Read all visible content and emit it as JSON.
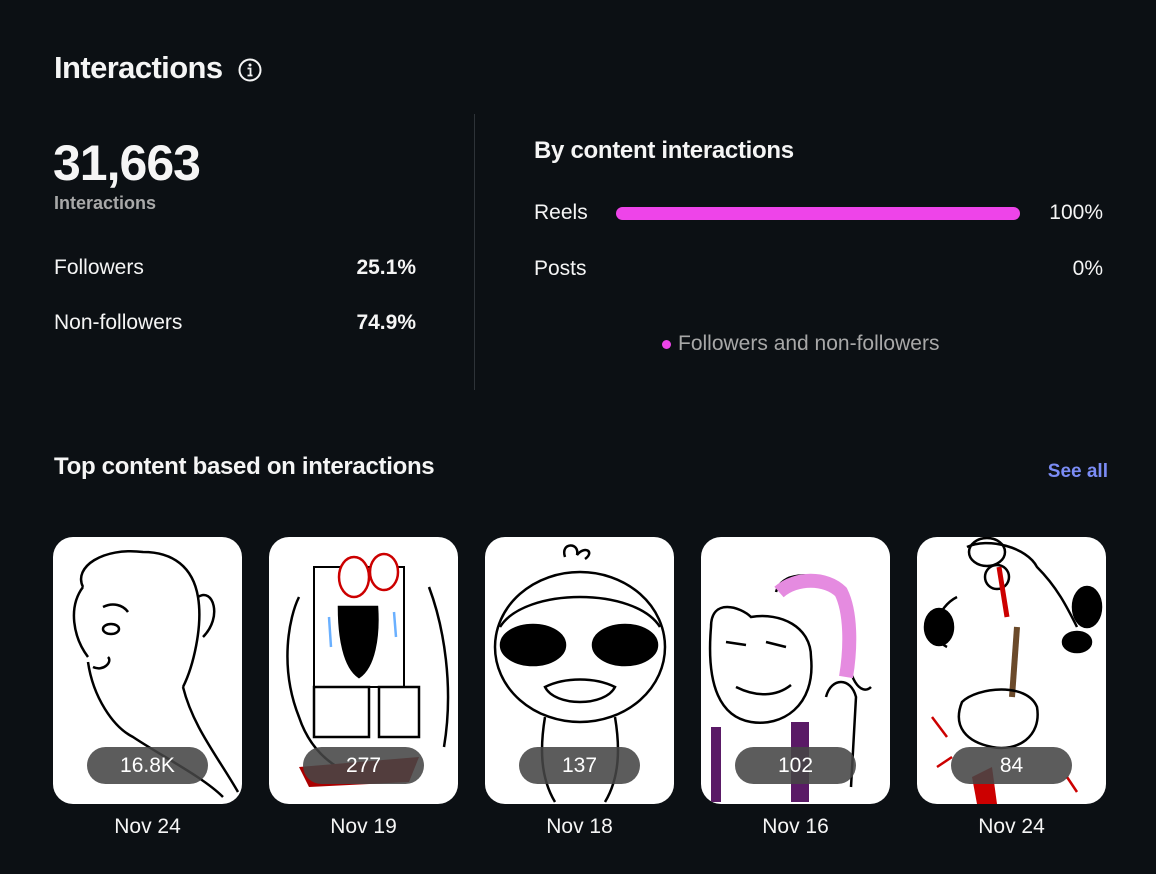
{
  "header": {
    "title": "Interactions",
    "info_icon": "info-circle-icon"
  },
  "summary": {
    "total": "31,663",
    "total_label": "Interactions",
    "rows": [
      {
        "label": "Followers",
        "value": "25.1%"
      },
      {
        "label": "Non-followers",
        "value": "74.9%"
      }
    ]
  },
  "by_content": {
    "title": "By content interactions",
    "bars": [
      {
        "label": "Reels",
        "percent": "100%",
        "fraction": 1.0
      },
      {
        "label": "Posts",
        "percent": "0%",
        "fraction": 0.0
      }
    ],
    "legend": "Followers and non-followers",
    "accent_color": "#ee44e9"
  },
  "top_content": {
    "title": "Top content based on interactions",
    "see_all": "See all",
    "items": [
      {
        "count": "16.8K",
        "date": "Nov 24"
      },
      {
        "count": "277",
        "date": "Nov 19"
      },
      {
        "count": "137",
        "date": "Nov 18"
      },
      {
        "count": "102",
        "date": "Nov 16"
      },
      {
        "count": "84",
        "date": "Nov 24"
      }
    ]
  }
}
